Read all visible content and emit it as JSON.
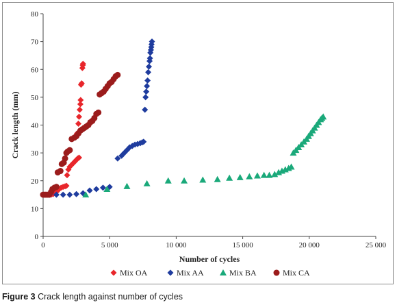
{
  "caption": {
    "label": "Figure 3",
    "text": "Crack length against number of cycles"
  },
  "chart_data": {
    "type": "scatter",
    "title": "",
    "xlabel": "Number of cycles",
    "ylabel": "Crack length (mm)",
    "xlim": [
      0,
      25000
    ],
    "ylim": [
      0,
      80
    ],
    "xticks": [
      0,
      5000,
      10000,
      15000,
      20000,
      25000
    ],
    "xtick_labels": [
      "0",
      "5 000",
      "10 000",
      "15 000",
      "20 000",
      "25 000"
    ],
    "yticks": [
      0,
      10,
      20,
      30,
      40,
      50,
      60,
      70,
      80
    ],
    "ytick_labels": [
      "0",
      "10",
      "20",
      "30",
      "40",
      "50",
      "60",
      "70",
      "80"
    ],
    "grid": false,
    "legend_position": "bottom",
    "series": [
      {
        "name": "Mix OA",
        "marker": "diamond",
        "color": "#e8262b",
        "points": [
          [
            0,
            15
          ],
          [
            150,
            15
          ],
          [
            300,
            15
          ],
          [
            450,
            15
          ],
          [
            600,
            15
          ],
          [
            750,
            15.2
          ],
          [
            900,
            15.5
          ],
          [
            1000,
            16
          ],
          [
            1100,
            16.5
          ],
          [
            1200,
            17
          ],
          [
            1350,
            17.5
          ],
          [
            1500,
            17.8
          ],
          [
            1650,
            18
          ],
          [
            1750,
            18.2
          ],
          [
            1800,
            22
          ],
          [
            1900,
            24
          ],
          [
            2000,
            25
          ],
          [
            2100,
            25.5
          ],
          [
            2200,
            26
          ],
          [
            2300,
            26.5
          ],
          [
            2400,
            27
          ],
          [
            2500,
            27.5
          ],
          [
            2600,
            28
          ],
          [
            2700,
            28.3
          ],
          [
            2550,
            37
          ],
          [
            2650,
            40.5
          ],
          [
            2700,
            43
          ],
          [
            2750,
            45.5
          ],
          [
            2800,
            47.5
          ],
          [
            2820,
            49
          ],
          [
            2850,
            54.5
          ],
          [
            2900,
            55
          ],
          [
            2950,
            60.5
          ],
          [
            2980,
            61.5
          ],
          [
            3000,
            62
          ]
        ]
      },
      {
        "name": "Mix AA",
        "marker": "diamond",
        "color": "#1f3c9e",
        "points": [
          [
            0,
            15
          ],
          [
            500,
            15
          ],
          [
            1000,
            15
          ],
          [
            1500,
            15
          ],
          [
            2000,
            15
          ],
          [
            2500,
            15.2
          ],
          [
            3000,
            15.5
          ],
          [
            3500,
            16.5
          ],
          [
            4000,
            17
          ],
          [
            4500,
            17.5
          ],
          [
            5000,
            17.8
          ],
          [
            5600,
            28
          ],
          [
            5900,
            29
          ],
          [
            6100,
            30
          ],
          [
            6300,
            31
          ],
          [
            6500,
            32
          ],
          [
            6700,
            32.5
          ],
          [
            6900,
            33
          ],
          [
            7100,
            33.2
          ],
          [
            7300,
            33.5
          ],
          [
            7450,
            33.8
          ],
          [
            7550,
            34
          ],
          [
            7650,
            45.5
          ],
          [
            7700,
            50
          ],
          [
            7750,
            52
          ],
          [
            7800,
            54
          ],
          [
            7850,
            56
          ],
          [
            7900,
            59
          ],
          [
            7950,
            61
          ],
          [
            8000,
            63
          ],
          [
            8030,
            64
          ],
          [
            8060,
            66
          ],
          [
            8100,
            67
          ],
          [
            8130,
            68
          ],
          [
            8150,
            69
          ],
          [
            8180,
            70
          ]
        ]
      },
      {
        "name": "Mix BA",
        "marker": "triangle",
        "color": "#1aa97a",
        "points": [
          [
            3200,
            15
          ],
          [
            4800,
            17
          ],
          [
            6300,
            18
          ],
          [
            7800,
            19
          ],
          [
            9400,
            20
          ],
          [
            10600,
            20
          ],
          [
            12000,
            20.3
          ],
          [
            13100,
            20.5
          ],
          [
            14000,
            21
          ],
          [
            14800,
            21.2
          ],
          [
            15500,
            21.5
          ],
          [
            16100,
            21.8
          ],
          [
            16600,
            22
          ],
          [
            17000,
            22
          ],
          [
            17400,
            22.3
          ],
          [
            17700,
            23
          ],
          [
            17950,
            23.5
          ],
          [
            18200,
            24
          ],
          [
            18450,
            24.5
          ],
          [
            18650,
            25
          ],
          [
            18800,
            30
          ],
          [
            19000,
            31
          ],
          [
            19200,
            32
          ],
          [
            19400,
            33
          ],
          [
            19600,
            34
          ],
          [
            19800,
            35
          ],
          [
            19950,
            36
          ],
          [
            20100,
            37
          ],
          [
            20250,
            38
          ],
          [
            20400,
            39
          ],
          [
            20550,
            40
          ],
          [
            20700,
            41
          ],
          [
            20850,
            42
          ],
          [
            20950,
            42.5
          ],
          [
            21050,
            43
          ]
        ]
      },
      {
        "name": "Mix CA",
        "marker": "circle",
        "color": "#9b1c1c",
        "points": [
          [
            0,
            15
          ],
          [
            150,
            15
          ],
          [
            300,
            15
          ],
          [
            450,
            15
          ],
          [
            600,
            16
          ],
          [
            700,
            17
          ],
          [
            850,
            17.5
          ],
          [
            1000,
            17.8
          ],
          [
            1100,
            23
          ],
          [
            1300,
            23.5
          ],
          [
            1400,
            26
          ],
          [
            1550,
            26.5
          ],
          [
            1650,
            28
          ],
          [
            1750,
            30
          ],
          [
            1850,
            30.5
          ],
          [
            2000,
            31
          ],
          [
            2150,
            35
          ],
          [
            2350,
            35.5
          ],
          [
            2500,
            36
          ],
          [
            2650,
            37
          ],
          [
            2800,
            38
          ],
          [
            2950,
            38.5
          ],
          [
            3100,
            39
          ],
          [
            3250,
            39.5
          ],
          [
            3400,
            40
          ],
          [
            3550,
            41
          ],
          [
            3700,
            41.5
          ],
          [
            3850,
            42.5
          ],
          [
            4000,
            44
          ],
          [
            4150,
            44.5
          ],
          [
            4250,
            51
          ],
          [
            4400,
            51.5
          ],
          [
            4550,
            52
          ],
          [
            4700,
            53
          ],
          [
            4850,
            54
          ],
          [
            5000,
            55
          ],
          [
            5150,
            55.5
          ],
          [
            5300,
            56.5
          ],
          [
            5450,
            57.5
          ],
          [
            5600,
            58
          ]
        ]
      }
    ]
  }
}
